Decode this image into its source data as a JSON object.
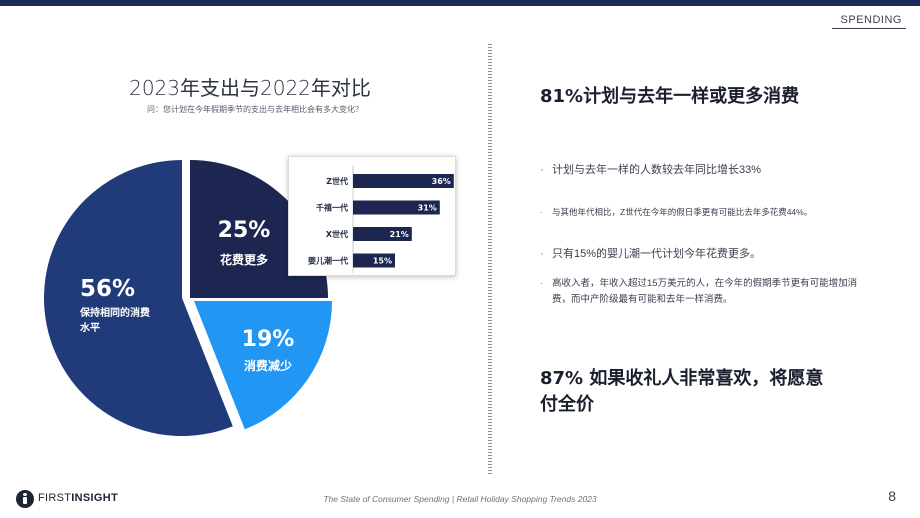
{
  "header": {
    "section_tag": "SPENDING"
  },
  "chart": {
    "title": "2023年支出与2022年对比",
    "subtitle": "问：您计划在今年假期季节的支出与去年相比会有多大变化？"
  },
  "chart_data": [
    {
      "type": "pie",
      "categories": [
        "花费更多",
        "消费减少",
        "保持相同的消费水平"
      ],
      "values": [
        25,
        19,
        56
      ],
      "value_labels": [
        "25%",
        "19%",
        "56%"
      ],
      "colors": [
        "#1c2650",
        "#2196f3",
        "#213a7a"
      ]
    },
    {
      "type": "bar",
      "orientation": "horizontal",
      "categories": [
        "Z世代",
        "千禧一代",
        "X世代",
        "婴儿潮一代"
      ],
      "values": [
        36,
        31,
        21,
        15
      ],
      "value_labels": [
        "36%",
        "31%",
        "21%",
        "15%"
      ],
      "xlim": [
        0,
        40
      ],
      "color": "#1c2650"
    }
  ],
  "right": {
    "headline_1": "81%计划与去年一样或更多消费",
    "bullet_marker": "·",
    "bullets": [
      "计划与去年一样的人数较去年同比增长33%",
      "与其他年代相比，Z世代在今年的假日季更有可能比去年多花费44%。",
      "只有15%的婴儿潮一代计划今年花费更多。",
      "高收入者，年收入超过15万美元的人，在今年的假期季节更有可能增加消费，而中产阶级最有可能和去年一样消费。"
    ],
    "headline_2": "87% 如果收礼人非常喜欢，将愿意付全价"
  },
  "footer": {
    "logo_bold_1": "FIRST",
    "logo_bold_2": "INSIGHT",
    "caption": "The State of Consumer Spending | Retail Holiday Shopping Trends 2023",
    "page_number": "8"
  }
}
